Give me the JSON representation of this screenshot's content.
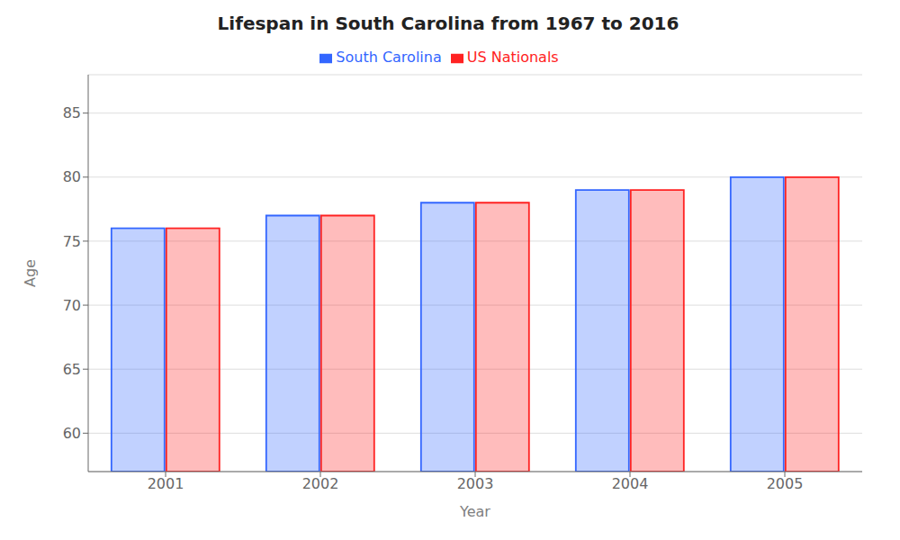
{
  "chart_data": {
    "type": "bar",
    "title": "Lifespan in South Carolina from 1967 to 2016",
    "xlabel": "Year",
    "ylabel": "Age",
    "categories": [
      "2001",
      "2002",
      "2003",
      "2004",
      "2005"
    ],
    "series": [
      {
        "name": "South Carolina",
        "color": "#3366ff",
        "values": [
          76,
          77,
          78,
          79,
          80
        ]
      },
      {
        "name": "US Nationals",
        "color": "#ff2222",
        "values": [
          76,
          77,
          78,
          79,
          80
        ]
      }
    ],
    "ylim": [
      57,
      88
    ],
    "yticks": [
      60,
      65,
      70,
      75,
      80,
      85
    ],
    "grid": true,
    "legend": "top"
  }
}
